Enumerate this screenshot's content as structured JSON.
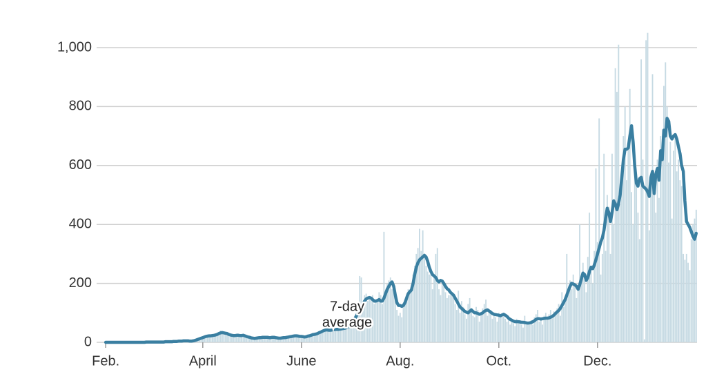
{
  "chart_data": {
    "type": "bar",
    "annotation": [
      "7-day",
      "average"
    ],
    "categories": [
      "Feb.",
      null,
      null,
      null,
      null,
      null,
      null,
      null,
      null,
      null,
      null,
      null,
      null,
      null,
      null,
      null,
      null,
      null,
      null,
      null,
      null,
      null,
      null,
      null,
      null,
      null,
      null,
      null,
      null,
      null,
      null,
      null,
      null,
      null,
      null,
      null,
      null,
      null,
      null,
      null,
      null,
      null,
      null,
      null,
      null,
      null,
      null,
      null,
      null,
      null,
      null,
      null,
      null,
      null,
      null,
      null,
      null,
      null,
      null,
      null,
      "April",
      null,
      null,
      null,
      null,
      null,
      null,
      null,
      null,
      null,
      null,
      null,
      null,
      null,
      null,
      null,
      null,
      null,
      null,
      null,
      null,
      null,
      null,
      null,
      null,
      null,
      null,
      null,
      null,
      null,
      null,
      null,
      null,
      null,
      null,
      null,
      null,
      null,
      null,
      null,
      null,
      null,
      null,
      null,
      null,
      null,
      null,
      null,
      null,
      null,
      null,
      null,
      null,
      null,
      null,
      null,
      null,
      null,
      null,
      null,
      null,
      "June",
      null,
      null,
      null,
      null,
      null,
      null,
      null,
      null,
      null,
      null,
      null,
      null,
      null,
      null,
      null,
      null,
      null,
      null,
      null,
      null,
      null,
      null,
      null,
      null,
      null,
      null,
      null,
      null,
      null,
      null,
      null,
      null,
      null,
      null,
      null,
      null,
      null,
      null,
      null,
      null,
      null,
      null,
      null,
      null,
      null,
      null,
      null,
      null,
      null,
      null,
      null,
      null,
      null,
      null,
      null,
      null,
      null,
      null,
      null,
      null,
      "Aug.",
      null,
      null,
      null,
      null,
      null,
      null,
      null,
      null,
      null,
      null,
      null,
      null,
      null,
      null,
      null,
      null,
      null,
      null,
      null,
      null,
      null,
      null,
      null,
      null,
      null,
      null,
      null,
      null,
      null,
      null,
      null,
      null,
      null,
      null,
      null,
      null,
      null,
      null,
      null,
      null,
      null,
      null,
      null,
      null,
      null,
      null,
      null,
      null,
      null,
      null,
      null,
      null,
      null,
      null,
      null,
      null,
      null,
      null,
      null,
      null,
      "Oct.",
      null,
      null,
      null,
      null,
      null,
      null,
      null,
      null,
      null,
      null,
      null,
      null,
      null,
      null,
      null,
      null,
      null,
      null,
      null,
      null,
      null,
      null,
      null,
      null,
      null,
      null,
      null,
      null,
      null,
      null,
      null,
      null,
      null,
      null,
      null,
      null,
      null,
      null,
      null,
      null,
      null,
      null,
      null,
      null,
      null,
      null,
      null,
      null,
      null,
      null,
      null,
      null,
      null,
      null,
      null,
      null,
      null,
      null,
      null,
      null,
      "Dec.",
      null,
      null,
      null,
      null,
      null,
      null,
      null,
      null,
      null,
      null,
      null,
      null,
      null,
      null,
      null,
      null,
      null,
      null,
      null,
      null,
      null,
      null,
      null,
      null,
      null,
      null,
      null,
      null,
      null,
      null,
      null,
      null,
      null,
      null,
      null,
      null,
      null,
      null,
      null,
      null,
      null,
      null,
      null,
      null,
      null,
      null,
      null,
      null,
      null,
      null,
      null,
      null,
      null,
      null,
      null,
      null,
      null,
      null,
      null,
      null,
      null
    ],
    "values": [
      0,
      0,
      0,
      0,
      0,
      0,
      0,
      0,
      0,
      0,
      0,
      0,
      0,
      0,
      0,
      0,
      0,
      0,
      0,
      0,
      0,
      0,
      0,
      0,
      0,
      1,
      1,
      2,
      1,
      1,
      0,
      1,
      2,
      1,
      1,
      0,
      2,
      2,
      3,
      2,
      1,
      3,
      3,
      4,
      2,
      5,
      4,
      5,
      6,
      4,
      6,
      5,
      3,
      5,
      6,
      7,
      10,
      12,
      14,
      16,
      18,
      20,
      22,
      20,
      25,
      18,
      24,
      28,
      30,
      22,
      35,
      40,
      38,
      30,
      28,
      35,
      25,
      22,
      27,
      20,
      26,
      28,
      22,
      20,
      25,
      27,
      18,
      22,
      16,
      18,
      14,
      12,
      15,
      16,
      13,
      18,
      17,
      15,
      20,
      16,
      19,
      14,
      17,
      18,
      15,
      18,
      13,
      12,
      16,
      17,
      15,
      18,
      20,
      17,
      22,
      24,
      20,
      25,
      23,
      19,
      22,
      18,
      20,
      17,
      21,
      23,
      19,
      27,
      28,
      25,
      32,
      28,
      36,
      38,
      35,
      44,
      46,
      40,
      42,
      38,
      45,
      48,
      40,
      46,
      42,
      50,
      44,
      49,
      52,
      47,
      60,
      58,
      70,
      65,
      90,
      85,
      110,
      225,
      220,
      125,
      160,
      165,
      140,
      155,
      150,
      160,
      130,
      145,
      140,
      170,
      160,
      130,
      375,
      160,
      200,
      210,
      220,
      180,
      195,
      150,
      110,
      90,
      100,
      85,
      120,
      130,
      150,
      180,
      170,
      190,
      230,
      260,
      300,
      320,
      385,
      310,
      380,
      300,
      260,
      240,
      230,
      250,
      180,
      230,
      300,
      320,
      180,
      160,
      200,
      195,
      170,
      150,
      160,
      160,
      170,
      150,
      130,
      110,
      175,
      100,
      140,
      120,
      95,
      80,
      130,
      150,
      105,
      90,
      85,
      120,
      110,
      70,
      100,
      115,
      130,
      145,
      90,
      100,
      110,
      80,
      95,
      85,
      70,
      100,
      85,
      95,
      100,
      80,
      70,
      90,
      60,
      75,
      65,
      55,
      80,
      70,
      75,
      60,
      50,
      90,
      65,
      60,
      70,
      75,
      60,
      85,
      95,
      110,
      70,
      85,
      60,
      90,
      100,
      80,
      95,
      110,
      90,
      105,
      100,
      115,
      130,
      90,
      170,
      120,
      150,
      300,
      160,
      210,
      180,
      230,
      200,
      150,
      190,
      400,
      230,
      270,
      210,
      170,
      290,
      440,
      240,
      200,
      310,
      590,
      340,
      760,
      230,
      300,
      640,
      310,
      500,
      460,
      300,
      640,
      400,
      930,
      850,
      1010,
      470,
      560,
      700,
      800,
      550,
      660,
      860,
      510,
      400,
      630,
      560,
      440,
      350,
      960,
      620,
      10,
      1025,
      1050,
      380,
      560,
      910,
      520,
      440,
      620,
      490,
      700,
      650,
      870,
      950,
      800,
      610,
      680,
      420,
      650,
      700,
      580,
      620,
      550,
      530,
      300,
      280,
      300,
      270,
      245,
      350,
      400,
      420,
      450
    ],
    "average": [
      0,
      0,
      0,
      0,
      0,
      0,
      0,
      0,
      0,
      0,
      0,
      0,
      0,
      0,
      0,
      0,
      0,
      0,
      0,
      0,
      0,
      0,
      0,
      0,
      0,
      1,
      1,
      1,
      1,
      1,
      1,
      1,
      1,
      1,
      1,
      1,
      1,
      2,
      2,
      2,
      2,
      2,
      3,
      3,
      3,
      4,
      4,
      4,
      5,
      5,
      5,
      5,
      4,
      4,
      5,
      6,
      8,
      10,
      12,
      14,
      16,
      18,
      20,
      21,
      22,
      22,
      23,
      24,
      25,
      27,
      30,
      32,
      33,
      32,
      31,
      30,
      27,
      25,
      24,
      23,
      23,
      24,
      24,
      23,
      23,
      24,
      22,
      20,
      18,
      17,
      15,
      14,
      13,
      14,
      15,
      16,
      16,
      17,
      17,
      17,
      17,
      16,
      16,
      17,
      17,
      16,
      15,
      14,
      14,
      15,
      16,
      16,
      17,
      18,
      19,
      20,
      21,
      22,
      22,
      21,
      20,
      20,
      19,
      18,
      19,
      21,
      22,
      24,
      26,
      27,
      28,
      30,
      33,
      35,
      38,
      40,
      42,
      42,
      41,
      41,
      42,
      43,
      44,
      44,
      44,
      45,
      46,
      47,
      48,
      50,
      52,
      56,
      62,
      70,
      80,
      90,
      100,
      110,
      120,
      130,
      140,
      147,
      150,
      152,
      150,
      145,
      140,
      140,
      142,
      145,
      140,
      140,
      150,
      165,
      180,
      190,
      200,
      205,
      190,
      160,
      135,
      125,
      125,
      122,
      125,
      135,
      150,
      165,
      172,
      178,
      200,
      230,
      255,
      270,
      280,
      285,
      290,
      295,
      290,
      275,
      255,
      240,
      230,
      225,
      220,
      210,
      205,
      210,
      208,
      200,
      190,
      182,
      178,
      170,
      165,
      160,
      150,
      140,
      130,
      120,
      115,
      110,
      105,
      102,
      100,
      105,
      110,
      105,
      100,
      100,
      98,
      95,
      97,
      100,
      105,
      108,
      110,
      106,
      102,
      98,
      95,
      94,
      93,
      92,
      90,
      93,
      95,
      92,
      88,
      82,
      78,
      75,
      72,
      70,
      70,
      70,
      69,
      68,
      68,
      67,
      66,
      65,
      66,
      67,
      70,
      73,
      78,
      80,
      80,
      79,
      80,
      81,
      82,
      82,
      83,
      85,
      88,
      92,
      98,
      103,
      108,
      115,
      125,
      135,
      145,
      160,
      175,
      190,
      200,
      198,
      195,
      190,
      180,
      195,
      215,
      235,
      230,
      210,
      220,
      240,
      255,
      250,
      262,
      280,
      300,
      320,
      340,
      355,
      380,
      420,
      455,
      440,
      410,
      440,
      480,
      470,
      450,
      470,
      500,
      560,
      620,
      655,
      655,
      660,
      700,
      735,
      680,
      600,
      540,
      530,
      555,
      560,
      530,
      525,
      520,
      510,
      495,
      560,
      580,
      505,
      570,
      590,
      550,
      650,
      620,
      720,
      700,
      760,
      750,
      700,
      690,
      700,
      705,
      690,
      665,
      640,
      600,
      580,
      480,
      410,
      400,
      390,
      375,
      360,
      350,
      370
    ],
    "bar_color": "#c6dae3",
    "line_color": "#3a7fa1",
    "ylim": [
      0,
      1050
    ],
    "yticks": [
      0,
      200,
      400,
      600,
      800,
      {
        "value": 1000,
        "label": "1,000"
      }
    ],
    "grid": true
  }
}
